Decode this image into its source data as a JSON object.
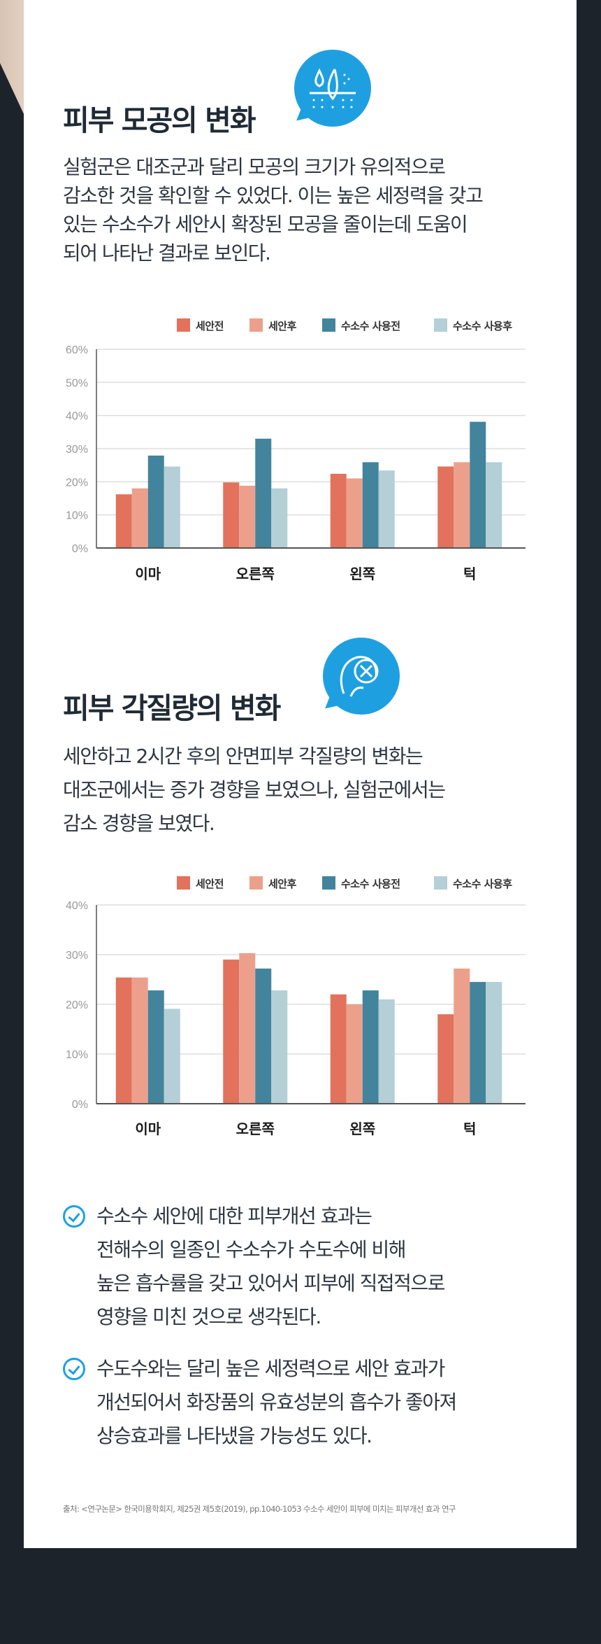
{
  "section1": {
    "title": "피부 모공의 변화",
    "icon": "pore-icon",
    "paragraph": [
      "실험군은 대조군과 달리 모공의 크기가 유의적으로",
      "감소한 것을 확인할 수 있었다. 이는 높은 세정력을 갖고",
      "있는 수소수가 세안시 확장된 모공을 줄이는데 도움이",
      "되어 나타난 결과로 보인다."
    ]
  },
  "section2": {
    "title": "피부 각질량의 변화",
    "icon": "face-skin-icon",
    "paragraph": [
      "세안하고 2시간 후의 안면피부 각질량의 변화는",
      "대조군에서는 증가 경향을 보였으나, 실험군에서는",
      "감소 경향을 보였다."
    ]
  },
  "colors": {
    "series": [
      "#e2725b",
      "#eca08b",
      "#42849c",
      "#b4cfd6"
    ],
    "accent": "#1ea0e0"
  },
  "chart_data": [
    {
      "type": "bar",
      "title": "",
      "categories": [
        "이마",
        "오른쪽",
        "왼쪽",
        "턱"
      ],
      "series": [
        {
          "name": "세안전",
          "values": [
            16.2,
            19.8,
            22.4,
            24.6
          ]
        },
        {
          "name": "세안후",
          "values": [
            18,
            18.8,
            21,
            25.9
          ]
        },
        {
          "name": "수소수 사용전",
          "values": [
            27.9,
            33,
            25.9,
            38.1
          ]
        },
        {
          "name": "수소수 사용후",
          "values": [
            24.6,
            18,
            23.4,
            25.9
          ]
        }
      ],
      "ylim": [
        0,
        60
      ],
      "yticks": [
        "0%",
        "10%",
        "20%",
        "30%",
        "40%",
        "50%",
        "60%"
      ],
      "grid": true,
      "legend": "top-right"
    },
    {
      "type": "bar",
      "title": "",
      "categories": [
        "이마",
        "오른쪽",
        "왼쪽",
        "턱"
      ],
      "series": [
        {
          "name": "세안전",
          "values": [
            25.4,
            29,
            22,
            18
          ]
        },
        {
          "name": "세안후",
          "values": [
            25.4,
            30.3,
            20,
            27.2
          ]
        },
        {
          "name": "수소수 사용전",
          "values": [
            22.8,
            27.2,
            22.8,
            24.5
          ]
        },
        {
          "name": "수소수 사용후",
          "values": [
            19.1,
            22.8,
            21,
            24.5
          ]
        }
      ],
      "ylim": [
        0,
        40
      ],
      "yticks": [
        "0%",
        "10%",
        "20%",
        "30%",
        "40%"
      ],
      "grid": true,
      "legend": "top-right"
    }
  ],
  "conclusions": [
    {
      "lines": [
        "수소수 세안에 대한 피부개선 효과는",
        "전해수의 일종인 수소수가 수도수에 비해",
        "높은 흡수률을 갖고 있어서 피부에 직접적으로",
        "영향을 미친 것으로 생각된다."
      ]
    },
    {
      "lines": [
        "수도수와는 달리 높은 세정력으로 세안 효과가",
        "개선되어서 화장품의 유효성분의 흡수가 좋아져",
        "상승효과를 나타냈을 가능성도 있다."
      ]
    }
  ],
  "source": "출처: <연구논문> 한국미용학회지, 제25권 제5호(2019), pp.1040-1053 수소수 세안이 피부에 미치는 피부개선 효과 연구"
}
